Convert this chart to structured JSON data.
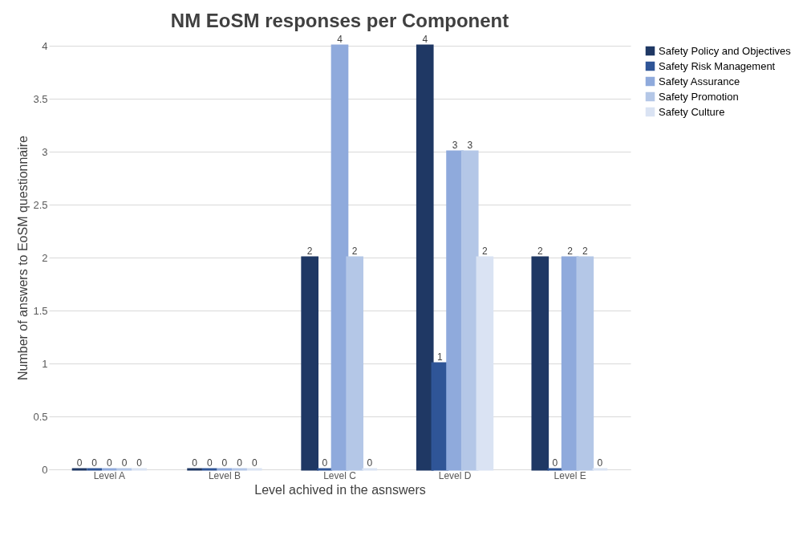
{
  "chart_data": {
    "type": "bar",
    "title": "NM EoSM responses per Component",
    "xlabel": "Level achived in the asnswers",
    "ylabel": "Number of answers to EoSM questionnaire",
    "categories": [
      "Level A",
      "Level B",
      "Level C",
      "Level D",
      "Level E"
    ],
    "series": [
      {
        "name": "Safety Policy and Objectives",
        "color": "#1f3864",
        "values": [
          0,
          0,
          2,
          4,
          2
        ]
      },
      {
        "name": "Safety Risk Management",
        "color": "#2f5597",
        "values": [
          0,
          0,
          0,
          1,
          0
        ]
      },
      {
        "name": "Safety Assurance",
        "color": "#8faadc",
        "values": [
          0,
          0,
          4,
          3,
          2
        ]
      },
      {
        "name": "Safety Promotion",
        "color": "#b4c7e7",
        "values": [
          0,
          0,
          2,
          3,
          2
        ]
      },
      {
        "name": "Safety Culture",
        "color": "#dae3f3",
        "values": [
          0,
          0,
          0,
          2,
          0
        ]
      }
    ],
    "ylim": [
      0,
      4
    ],
    "yticks": [
      0,
      0.5,
      1,
      1.5,
      2,
      2.5,
      3,
      3.5,
      4
    ],
    "grid": "y",
    "legend": "right",
    "data_labels": true
  }
}
